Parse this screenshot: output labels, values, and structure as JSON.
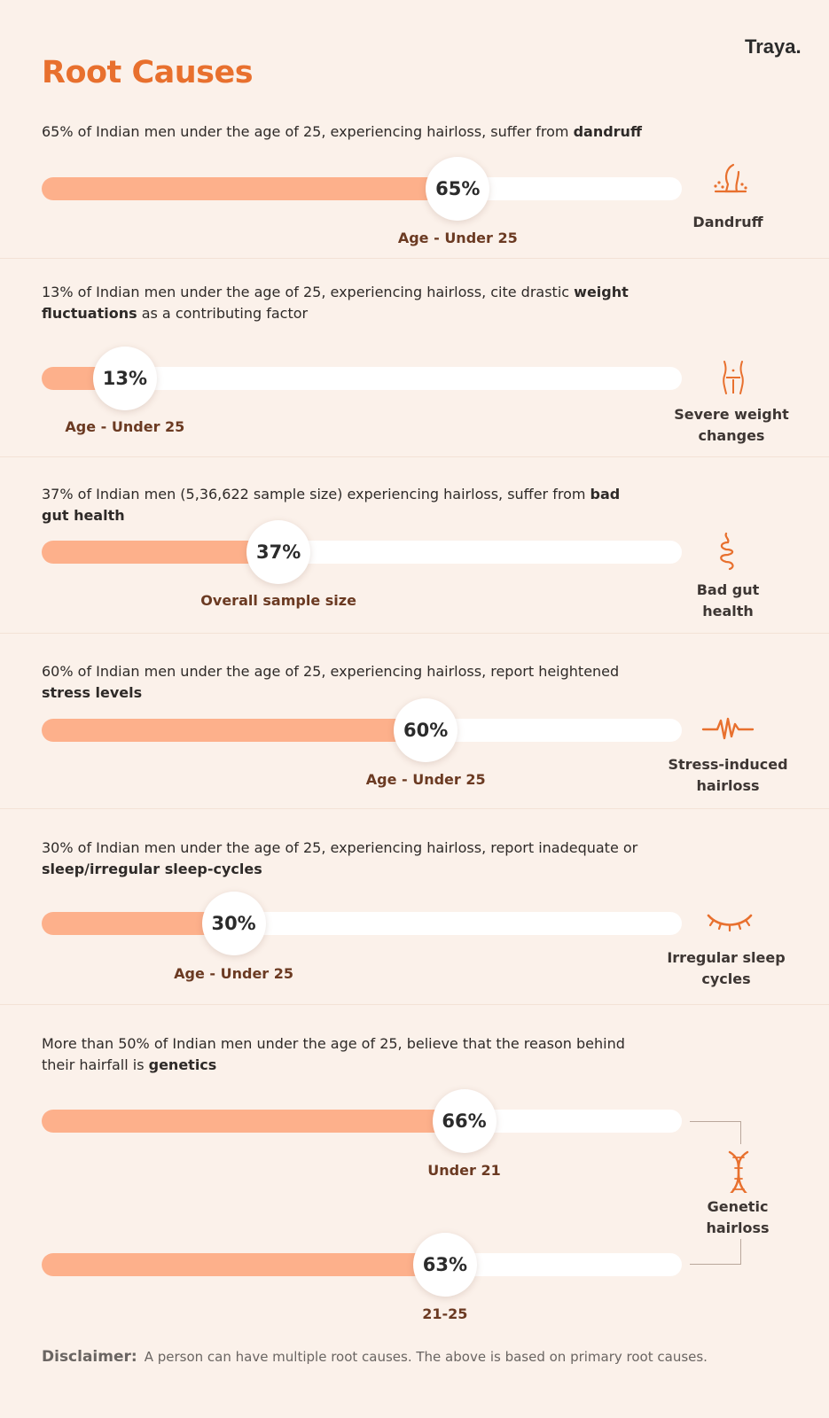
{
  "brand": "Traya.",
  "title": "Root Causes",
  "sections": [
    {
      "desc_pre": "65% of Indian men under the age of 25, experiencing hairloss, suffer from ",
      "desc_bold": "dandruff",
      "desc_post": "",
      "percent": 65,
      "percent_label": "65%",
      "sublabel": "Age - Under 25",
      "icon": "dandruff-icon",
      "icon_label": "Dandruff"
    },
    {
      "desc_pre": "13% of Indian men under the age of 25, experiencing hairloss, cite drastic ",
      "desc_bold": "weight fluctuations",
      "desc_post": " as a contributing factor",
      "percent": 13,
      "percent_label": "13%",
      "sublabel": "Age - Under 25",
      "icon": "weight-icon",
      "icon_label": "Severe weight changes"
    },
    {
      "desc_pre": "37% of Indian men (5,36,622 sample size) experiencing hairloss, suffer from ",
      "desc_bold": "bad gut health",
      "desc_post": "",
      "percent": 37,
      "percent_label": "37%",
      "sublabel": "Overall sample size",
      "icon": "gut-icon",
      "icon_label": "Bad gut health"
    },
    {
      "desc_pre": "60% of Indian men under the age of 25, experiencing hairloss, report heightened ",
      "desc_bold": "stress levels",
      "desc_post": "",
      "percent": 60,
      "percent_label": "60%",
      "sublabel": "Age - Under 25",
      "icon": "stress-wave-icon",
      "icon_label": "Stress-induced hairloss"
    },
    {
      "desc_pre": "30% of Indian men under the age of 25, experiencing hairloss, report inadequate or ",
      "desc_bold": "sleep/irregular sleep-cycles",
      "desc_post": "",
      "percent": 30,
      "percent_label": "30%",
      "sublabel": "Age - Under 25",
      "icon": "closed-eye-icon",
      "icon_label": "Irregular sleep cycles"
    }
  ],
  "genetics": {
    "desc_pre": "More than 50% of Indian men under the age of 25, believe that the reason behind their hairfall is ",
    "desc_bold": "genetics",
    "bars": [
      {
        "percent": 66,
        "percent_label": "66%",
        "sublabel": "Under 21"
      },
      {
        "percent": 63,
        "percent_label": "63%",
        "sublabel": "21-25"
      }
    ],
    "icon": "dna-icon",
    "icon_label": "Genetic hairloss"
  },
  "disclaimer": {
    "label": "Disclaimer:",
    "text": "A person can have multiple root causes. The above is based on primary root causes."
  },
  "colors": {
    "accent": "#e8702e",
    "bar_fill": "#fdb08b",
    "track": "#ffffff",
    "background": "#fbf1ea",
    "sublabel": "#6b3a22"
  }
}
